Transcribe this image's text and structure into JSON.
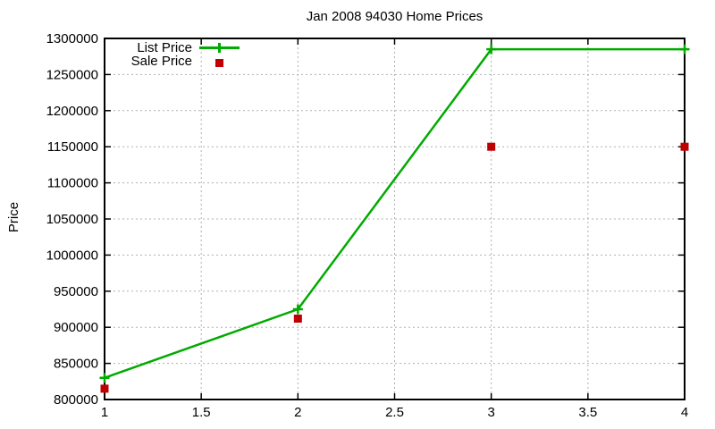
{
  "chart_data": {
    "type": "line",
    "title": "Jan 2008 94030 Home Prices",
    "xlabel": "",
    "ylabel": "Price",
    "xlim": [
      1,
      4
    ],
    "ylim": [
      800000,
      1300000
    ],
    "xticks": [
      1,
      1.5,
      2,
      2.5,
      3,
      3.5,
      4
    ],
    "xtick_labels": [
      "1",
      "1.5",
      "2",
      "2.5",
      "3",
      "3.5",
      "4"
    ],
    "yticks": [
      800000,
      850000,
      900000,
      950000,
      1000000,
      1050000,
      1100000,
      1150000,
      1200000,
      1250000,
      1300000
    ],
    "ytick_labels": [
      "800000",
      "850000",
      "900000",
      "950000",
      "1000000",
      "1050000",
      "1100000",
      "1150000",
      "1200000",
      "1250000",
      "1300000"
    ],
    "grid": true,
    "legend_position": "top-left-inside",
    "x": [
      1,
      2,
      3,
      4
    ],
    "series": [
      {
        "name": "List Price",
        "style": "line-with-plus-markers",
        "color": "#00aa00",
        "values": [
          830000,
          925000,
          1285000,
          1285000
        ]
      },
      {
        "name": "Sale Price",
        "style": "square-markers",
        "color": "#c00000",
        "values": [
          815000,
          912000,
          1150000,
          1150000
        ]
      }
    ]
  },
  "colors": {
    "background": "#ffffff",
    "axis": "#000000",
    "grid": "#b0b0b0",
    "text": "#000000",
    "list_price": "#00aa00",
    "sale_price": "#c00000"
  }
}
